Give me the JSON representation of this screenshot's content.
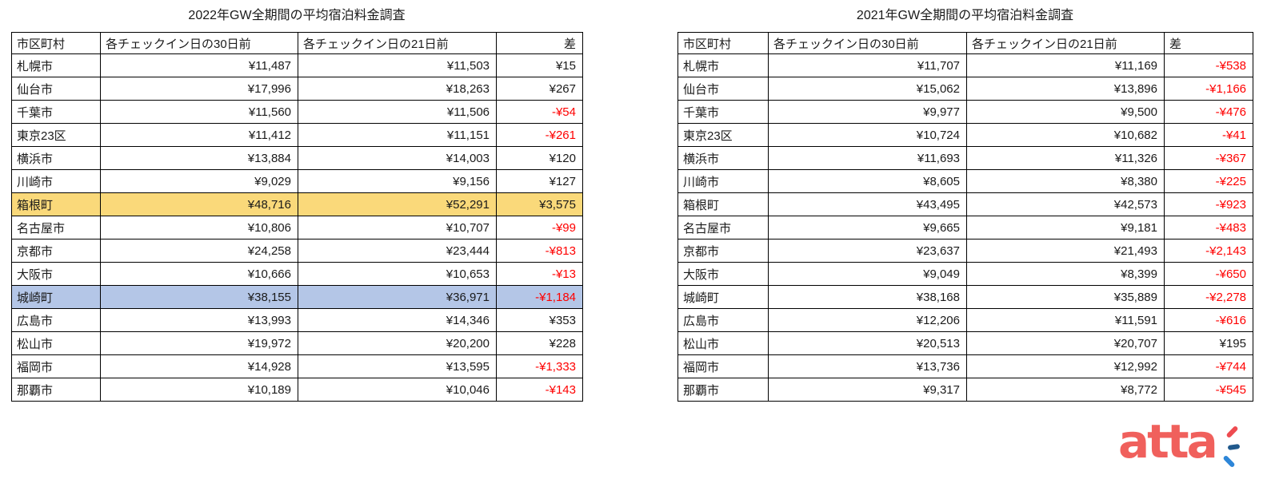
{
  "chart_data": [
    {
      "type": "table",
      "title": "2022年GW全期間の平均宿泊料金調査",
      "columns": [
        "市区町村",
        "各チェックイン日の30日前",
        "各チェックイン日の21日前",
        "差"
      ],
      "rows": [
        {
          "city": "札幌市",
          "d30": "¥11,487",
          "d21": "¥11,503",
          "diff": "¥15",
          "highlight": null
        },
        {
          "city": "仙台市",
          "d30": "¥17,996",
          "d21": "¥18,263",
          "diff": "¥267",
          "highlight": null
        },
        {
          "city": "千葉市",
          "d30": "¥11,560",
          "d21": "¥11,506",
          "diff": "-¥54",
          "highlight": null
        },
        {
          "city": "東京23区",
          "d30": "¥11,412",
          "d21": "¥11,151",
          "diff": "-¥261",
          "highlight": null
        },
        {
          "city": "横浜市",
          "d30": "¥13,884",
          "d21": "¥14,003",
          "diff": "¥120",
          "highlight": null
        },
        {
          "city": "川崎市",
          "d30": "¥9,029",
          "d21": "¥9,156",
          "diff": "¥127",
          "highlight": null
        },
        {
          "city": "箱根町",
          "d30": "¥48,716",
          "d21": "¥52,291",
          "diff": "¥3,575",
          "highlight": "yellow"
        },
        {
          "city": "名古屋市",
          "d30": "¥10,806",
          "d21": "¥10,707",
          "diff": "-¥99",
          "highlight": null
        },
        {
          "city": "京都市",
          "d30": "¥24,258",
          "d21": "¥23,444",
          "diff": "-¥813",
          "highlight": null
        },
        {
          "city": "大阪市",
          "d30": "¥10,666",
          "d21": "¥10,653",
          "diff": "-¥13",
          "highlight": null
        },
        {
          "city": "城崎町",
          "d30": "¥38,155",
          "d21": "¥36,971",
          "diff": "-¥1,184",
          "highlight": "blue"
        },
        {
          "city": "広島市",
          "d30": "¥13,993",
          "d21": "¥14,346",
          "diff": "¥353",
          "highlight": null
        },
        {
          "city": "松山市",
          "d30": "¥19,972",
          "d21": "¥20,200",
          "diff": "¥228",
          "highlight": null
        },
        {
          "city": "福岡市",
          "d30": "¥14,928",
          "d21": "¥13,595",
          "diff": "-¥1,333",
          "highlight": null
        },
        {
          "city": "那覇市",
          "d30": "¥10,189",
          "d21": "¥10,046",
          "diff": "-¥143",
          "highlight": null
        }
      ]
    },
    {
      "type": "table",
      "title": "2021年GW全期間の平均宿泊料金調査",
      "columns": [
        "市区町村",
        "各チェックイン日の30日前",
        "各チェックイン日の21日前",
        "差"
      ],
      "rows": [
        {
          "city": "札幌市",
          "d30": "¥11,707",
          "d21": "¥11,169",
          "diff": "-¥538",
          "highlight": null
        },
        {
          "city": "仙台市",
          "d30": "¥15,062",
          "d21": "¥13,896",
          "diff": "-¥1,166",
          "highlight": null
        },
        {
          "city": "千葉市",
          "d30": "¥9,977",
          "d21": "¥9,500",
          "diff": "-¥476",
          "highlight": null
        },
        {
          "city": "東京23区",
          "d30": "¥10,724",
          "d21": "¥10,682",
          "diff": "-¥41",
          "highlight": null
        },
        {
          "city": "横浜市",
          "d30": "¥11,693",
          "d21": "¥11,326",
          "diff": "-¥367",
          "highlight": null
        },
        {
          "city": "川崎市",
          "d30": "¥8,605",
          "d21": "¥8,380",
          "diff": "-¥225",
          "highlight": null
        },
        {
          "city": "箱根町",
          "d30": "¥43,495",
          "d21": "¥42,573",
          "diff": "-¥923",
          "highlight": null
        },
        {
          "city": "名古屋市",
          "d30": "¥9,665",
          "d21": "¥9,181",
          "diff": "-¥483",
          "highlight": null
        },
        {
          "city": "京都市",
          "d30": "¥23,637",
          "d21": "¥21,493",
          "diff": "-¥2,143",
          "highlight": null
        },
        {
          "city": "大阪市",
          "d30": "¥9,049",
          "d21": "¥8,399",
          "diff": "-¥650",
          "highlight": null
        },
        {
          "city": "城崎町",
          "d30": "¥38,168",
          "d21": "¥35,889",
          "diff": "-¥2,278",
          "highlight": null
        },
        {
          "city": "広島市",
          "d30": "¥12,206",
          "d21": "¥11,591",
          "diff": "-¥616",
          "highlight": null
        },
        {
          "city": "松山市",
          "d30": "¥20,513",
          "d21": "¥20,707",
          "diff": "¥195",
          "highlight": null
        },
        {
          "city": "福岡市",
          "d30": "¥13,736",
          "d21": "¥12,992",
          "diff": "-¥744",
          "highlight": null
        },
        {
          "city": "那覇市",
          "d30": "¥9,317",
          "d21": "¥8,772",
          "diff": "-¥545",
          "highlight": null
        }
      ]
    }
  ],
  "colors": {
    "negative": "#ff0000",
    "highlight_yellow": "#fad97a",
    "highlight_blue": "#b4c6e7",
    "logo_coral": "#f0605c",
    "spark_red": "#ee4b50",
    "spark_navy": "#20598c",
    "spark_blue": "#2e86d8"
  },
  "logo": {
    "text": "atta"
  }
}
